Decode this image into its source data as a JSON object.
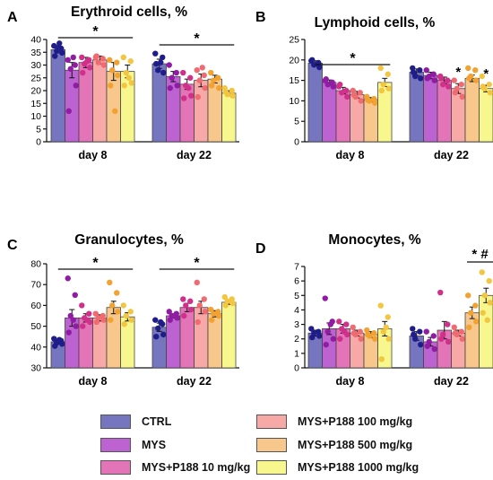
{
  "chart_data": [
    {
      "type": "bar",
      "panel_letter": "A",
      "title": "Erythroid cells, %",
      "groups": [
        "day 8",
        "day 22"
      ],
      "ylim": [
        0,
        40
      ],
      "yticks": [
        0,
        5,
        10,
        15,
        20,
        25,
        30,
        35,
        40
      ],
      "series": [
        {
          "name": "CTRL",
          "values": [
            36.0,
            30.5
          ],
          "errors": [
            1.2,
            1.8
          ],
          "points": [
            [
              37.5,
              36.5,
              35.5,
              34.8,
              33.5,
              38.5,
              36.8
            ],
            [
              34.5,
              33.0,
              28.0,
              27.0,
              30.5,
              31.0
            ]
          ]
        },
        {
          "name": "MYS",
          "values": [
            28.0,
            25.5
          ],
          "errors": [
            3.0,
            2.0
          ],
          "points": [
            [
              32.0,
              30.0,
              28.5,
              22.0,
              12.0,
              33.0
            ],
            [
              30.0,
              27.0,
              25.0,
              22.0,
              21.0
            ]
          ]
        },
        {
          "name": "MYS+P188 10 mg/kg",
          "values": [
            31.0,
            22.5
          ],
          "errors": [
            2.0,
            2.0
          ],
          "points": [
            [
              33.0,
              32.0,
              30.5,
              29.0,
              27.0,
              31.5
            ],
            [
              27.0,
              25.0,
              22.0,
              18.0,
              17.0,
              21.0
            ]
          ]
        },
        {
          "name": "MYS+P188 100 mg/kg",
          "values": [
            32.0,
            24.0
          ],
          "errors": [
            1.5,
            2.5
          ],
          "points": [
            [
              33.0,
              32.5,
              31.0,
              30.0,
              33.5
            ],
            [
              28.0,
              26.0,
              24.0,
              21.0,
              17.5,
              29.0
            ]
          ]
        },
        {
          "name": "MYS+P188 500 mg/kg",
          "values": [
            27.5,
            24.5
          ],
          "errors": [
            3.5,
            1.5
          ],
          "points": [
            [
              32.0,
              31.0,
              28.0,
              26.0,
              22.0,
              12.0
            ],
            [
              27.0,
              25.0,
              24.0,
              21.0,
              22.0
            ]
          ]
        },
        {
          "name": "MYS+P188 1000 mg/kg",
          "values": [
            27.5,
            19.0
          ],
          "errors": [
            2.5,
            1.0
          ],
          "points": [
            [
              33.0,
              31.5,
              27.0,
              23.0,
              22.0,
              25.0
            ],
            [
              21.0,
              20.0,
              18.5,
              18.0,
              19.5
            ]
          ]
        }
      ],
      "significance": [
        {
          "group": "day 8",
          "label": "*"
        },
        {
          "group": "day 22",
          "label": "*"
        }
      ]
    },
    {
      "type": "bar",
      "panel_letter": "B",
      "title": "Lymphoid cells, %",
      "groups": [
        "day 8",
        "day 22"
      ],
      "ylim": [
        0,
        25
      ],
      "yticks": [
        0,
        5,
        10,
        15,
        20,
        25
      ],
      "series": [
        {
          "name": "CTRL",
          "values": [
            19.2,
            17.0
          ],
          "errors": [
            0.6,
            0.8
          ],
          "points": [
            [
              19.8,
              19.3,
              18.8,
              18.2,
              20.0
            ],
            [
              18.0,
              17.5,
              16.0,
              15.5,
              17.0
            ]
          ]
        },
        {
          "name": "MYS",
          "values": [
            14.5,
            16.2
          ],
          "errors": [
            0.6,
            0.8
          ],
          "points": [
            [
              15.0,
              14.5,
              14.0,
              13.5,
              15.3
            ],
            [
              17.5,
              16.5,
              16.0,
              15.0,
              15.5
            ]
          ]
        },
        {
          "name": "MYS+P188 10 mg/kg",
          "values": [
            12.5,
            15.0
          ],
          "errors": [
            0.8,
            0.8
          ],
          "points": [
            [
              13.5,
              12.5,
              12.0,
              11.0,
              14.0
            ],
            [
              16.0,
              15.0,
              14.0,
              13.5,
              15.5
            ]
          ]
        },
        {
          "name": "MYS+P188 100 mg/kg",
          "values": [
            11.5,
            13.0
          ],
          "errors": [
            0.8,
            1.2
          ],
          "points": [
            [
              12.5,
              12.0,
              11.0,
              10.0,
              11.5
            ],
            [
              15.0,
              14.0,
              13.0,
              11.0,
              12.0
            ]
          ]
        },
        {
          "name": "MYS+P188 500 mg/kg",
          "values": [
            10.3,
            15.5
          ],
          "errors": [
            0.5,
            0.8
          ],
          "points": [
            [
              11.0,
              10.5,
              10.0,
              9.5,
              10.2
            ],
            [
              18.0,
              17.5,
              16.0,
              15.0,
              15.5
            ]
          ]
        },
        {
          "name": "MYS+P188 1000 mg/kg",
          "values": [
            14.5,
            13.0
          ],
          "errors": [
            1.0,
            0.8
          ],
          "points": [
            [
              18.0,
              16.5,
              14.0,
              13.0,
              12.5
            ],
            [
              16.0,
              14.0,
              13.0,
              12.0,
              13.5
            ]
          ]
        }
      ],
      "significance": [
        {
          "group": "day 8",
          "label": "*"
        },
        {
          "group": "day 22",
          "series": "MYS+P188 100 mg/kg",
          "label": "*"
        },
        {
          "group": "day 22",
          "series": "MYS+P188 1000 mg/kg",
          "label": "*"
        }
      ]
    },
    {
      "type": "bar",
      "panel_letter": "C",
      "title": "Granulocytes, %",
      "groups": [
        "day 8",
        "day 22"
      ],
      "ylim": [
        30,
        80
      ],
      "yticks": [
        30,
        40,
        50,
        60,
        70,
        80
      ],
      "series": [
        {
          "name": "CTRL",
          "values": [
            42.5,
            49.5
          ],
          "errors": [
            1.0,
            2.0
          ],
          "points": [
            [
              44.0,
              43.0,
              42.0,
              41.5,
              40.5,
              43.5
            ],
            [
              53.0,
              51.0,
              49.0,
              46.0,
              45.0,
              52.0
            ]
          ]
        },
        {
          "name": "MYS",
          "values": [
            54.0,
            55.0
          ],
          "errors": [
            4.0,
            1.0
          ],
          "points": [
            [
              73.0,
              65.0,
              55.0,
              50.0,
              47.0,
              53.0
            ],
            [
              57.0,
              56.0,
              55.0,
              54.0,
              53.0
            ]
          ]
        },
        {
          "name": "MYS+P188 10 mg/kg",
          "values": [
            54.0,
            59.0
          ],
          "errors": [
            2.0,
            2.0
          ],
          "points": [
            [
              60.0,
              56.0,
              54.0,
              52.0,
              50.0,
              53.0
            ],
            [
              63.0,
              62.0,
              60.0,
              58.0,
              55.0
            ]
          ]
        },
        {
          "name": "MYS+P188 100 mg/kg",
          "values": [
            54.0,
            59.0
          ],
          "errors": [
            1.5,
            3.0
          ],
          "points": [
            [
              56.0,
              55.0,
              54.0,
              53.0,
              52.0
            ],
            [
              71.0,
              63.0,
              60.0,
              57.0,
              52.0
            ]
          ]
        },
        {
          "name": "MYS+P188 500 mg/kg",
          "values": [
            59.0,
            56.0
          ],
          "errors": [
            3.0,
            1.5
          ],
          "points": [
            [
              71.0,
              66.0,
              60.0,
              57.0,
              53.0
            ],
            [
              58.0,
              57.0,
              56.0,
              55.0,
              53.0
            ]
          ]
        },
        {
          "name": "MYS+P188 1000 mg/kg",
          "values": [
            54.5,
            61.5
          ],
          "errors": [
            2.0,
            1.0
          ],
          "points": [
            [
              60.0,
              57.0,
              55.0,
              53.0,
              51.0
            ],
            [
              64.0,
              63.0,
              62.0,
              61.0,
              60.0
            ]
          ]
        }
      ],
      "significance": [
        {
          "group": "day 8",
          "label": "*"
        },
        {
          "group": "day 22",
          "label": "*"
        }
      ]
    },
    {
      "type": "bar",
      "panel_letter": "D",
      "title": "Monocytes, %",
      "groups": [
        "day 8",
        "day 22"
      ],
      "ylim": [
        0,
        7
      ],
      "yticks": [
        0,
        1,
        2,
        3,
        4,
        5,
        6,
        7
      ],
      "series": [
        {
          "name": "CTRL",
          "values": [
            2.4,
            2.2
          ],
          "errors": [
            0.2,
            0.3
          ],
          "points": [
            [
              2.7,
              2.5,
              2.4,
              2.2,
              2.1
            ],
            [
              2.7,
              2.5,
              2.0,
              1.6,
              2.3
            ]
          ]
        },
        {
          "name": "MYS",
          "values": [
            2.7,
            1.8
          ],
          "errors": [
            0.4,
            0.3
          ],
          "points": [
            [
              4.8,
              3.2,
              2.5,
              2.0,
              1.6,
              3.0
            ],
            [
              2.5,
              2.2,
              1.8,
              1.3,
              1.5
            ]
          ]
        },
        {
          "name": "MYS+P188 10 mg/kg",
          "values": [
            2.7,
            2.6
          ],
          "errors": [
            0.3,
            0.6
          ],
          "points": [
            [
              3.2,
              3.0,
              2.7,
              2.3,
              2.0,
              2.5
            ],
            [
              5.2,
              3.0,
              2.3,
              1.8,
              2.0
            ]
          ]
        },
        {
          "name": "MYS+P188 100 mg/kg",
          "values": [
            2.4,
            2.4
          ],
          "errors": [
            0.2,
            0.2
          ],
          "points": [
            [
              2.8,
              2.5,
              2.3,
              2.0,
              2.4
            ],
            [
              2.8,
              2.5,
              2.3,
              2.0,
              2.4
            ]
          ]
        },
        {
          "name": "MYS+P188 500 mg/kg",
          "values": [
            2.3,
            3.8
          ],
          "errors": [
            0.2,
            0.4
          ],
          "points": [
            [
              2.6,
              2.4,
              2.2,
              2.0,
              2.3
            ],
            [
              5.0,
              4.3,
              3.8,
              3.2,
              2.8
            ]
          ]
        },
        {
          "name": "MYS+P188 1000 mg/kg",
          "values": [
            2.7,
            5.0
          ],
          "errors": [
            0.5,
            0.5
          ],
          "points": [
            [
              4.3,
              3.5,
              2.5,
              2.0,
              0.6,
              2.8
            ],
            [
              6.6,
              6.0,
              5.0,
              4.5,
              3.8,
              3.3
            ]
          ]
        }
      ],
      "significance": [
        {
          "group": "day 22",
          "label": "* #"
        }
      ]
    }
  ],
  "legend": {
    "colors": [
      "#7575c0",
      "#bd62d1",
      "#e374b7",
      "#f7a9a8",
      "#f8c78b",
      "#f7f78d"
    ],
    "dot_colors": [
      "#1f1d89",
      "#8f1ca3",
      "#d0308a",
      "#f06a72",
      "#f2a230",
      "#f2c640"
    ]
  }
}
